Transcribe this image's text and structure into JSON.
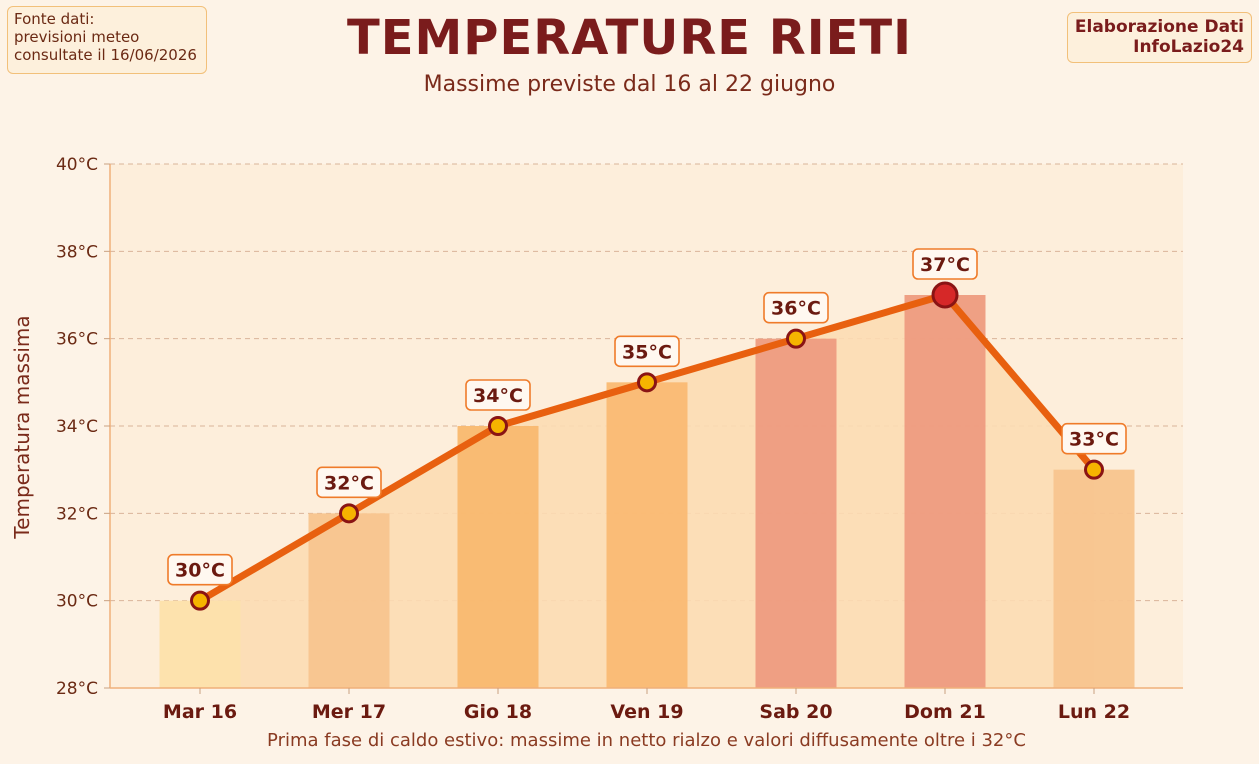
{
  "source_note": {
    "lines": [
      "Fonte dati:",
      "previsioni meteo",
      "consultate il 16/06/2026"
    ]
  },
  "credit": {
    "lines": [
      "Elaborazione Dati",
      "InfoLazio24"
    ]
  },
  "chart_data": {
    "type": "bar",
    "title": "TEMPERATURE RIETI",
    "subtitle": "Massime previste dal 16 al 22 giugno",
    "ylabel": "Temperatura massima",
    "xlabel": "",
    "caption": "Prima fase di caldo estivo: massime in netto rialzo e valori diffusamente oltre i 32°C",
    "categories": [
      "Mar 16",
      "Mer 17",
      "Gio 18",
      "Ven 19",
      "Sab 20",
      "Dom 21",
      "Lun 22"
    ],
    "values": [
      30,
      32,
      34,
      35,
      36,
      37,
      33
    ],
    "data_labels": [
      "30°C",
      "32°C",
      "34°C",
      "35°C",
      "36°C",
      "37°C",
      "33°C"
    ],
    "ylim": [
      28,
      40
    ],
    "yticks": [
      28,
      30,
      32,
      34,
      36,
      38,
      40
    ],
    "ytick_labels": [
      "28°C",
      "30°C",
      "32°C",
      "34°C",
      "36°C",
      "38°C",
      "40°C"
    ],
    "grid": true,
    "overlay": "line",
    "peak_index": 5,
    "colors": {
      "bars": [
        "#fde0ab",
        "#f8c48e",
        "#f9b86f",
        "#fab973",
        "#ee9b80",
        "#ee9b80",
        "#f8c48e"
      ],
      "line": "#e8600f",
      "marker_fill": "#f6b400",
      "marker_edge": "#8a1414",
      "peak_marker_fill": "#d62828",
      "area": "#fcdcb3",
      "plot_bg": "#fdeedb",
      "label_text": "#6b1a10",
      "label_border": "#ef7b2a"
    }
  }
}
